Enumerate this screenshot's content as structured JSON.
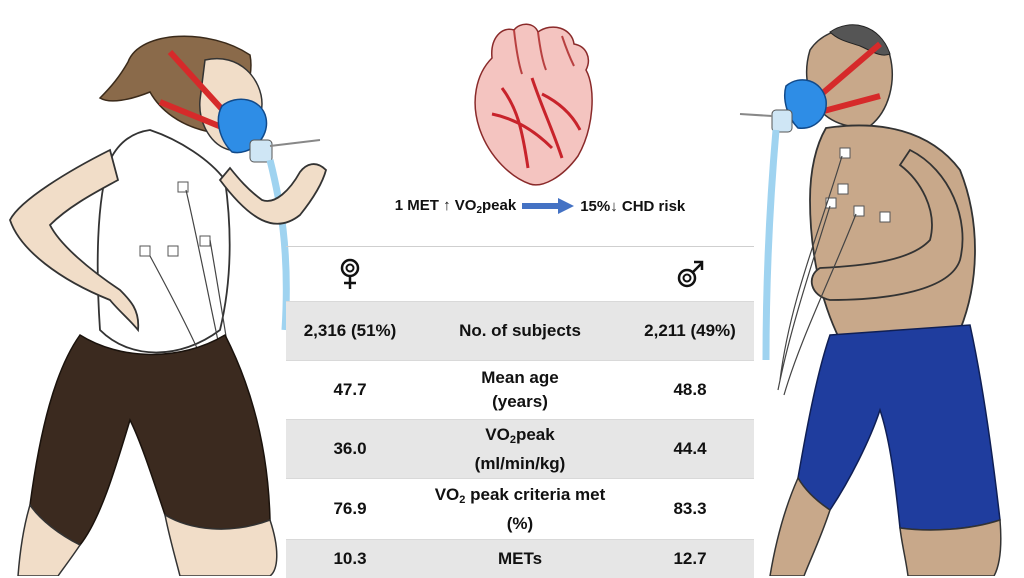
{
  "headline": {
    "left": "1 MET ↑ VO",
    "left_sub": "2",
    "left_tail": "peak",
    "right": "15%↓ CHD risk"
  },
  "table": {
    "female_icon": "female-symbol-icon",
    "male_icon": "male-symbol-icon",
    "rows": [
      {
        "female": "2,316 (51%)",
        "label": "No. of subjects",
        "male": "2,211 (49%)"
      },
      {
        "female": "47.7",
        "label_line1": "Mean age",
        "label_line2": "(years)",
        "male": "48.8"
      },
      {
        "female": "36.0",
        "label_pre": "VO",
        "label_sub": "2",
        "label_post": "peak",
        "label_line2": "(ml/min/kg)",
        "male": "44.4"
      },
      {
        "female": "76.9",
        "label_pre": "VO",
        "label_sub": "2",
        "label_post": " peak criteria met",
        "label_line2": "(%)",
        "male": "83.3"
      },
      {
        "female": "10.3",
        "label": "METs",
        "male": "12.7"
      }
    ]
  },
  "colors": {
    "arrow": "#4472c4",
    "row_shade": "#e6e6e6",
    "mask_blue": "#2e8de6",
    "strap_red": "#d62a2a",
    "shorts_female": "#3b2a1f",
    "shorts_male": "#1f3d9e",
    "skin_male": "#c8a88a"
  }
}
